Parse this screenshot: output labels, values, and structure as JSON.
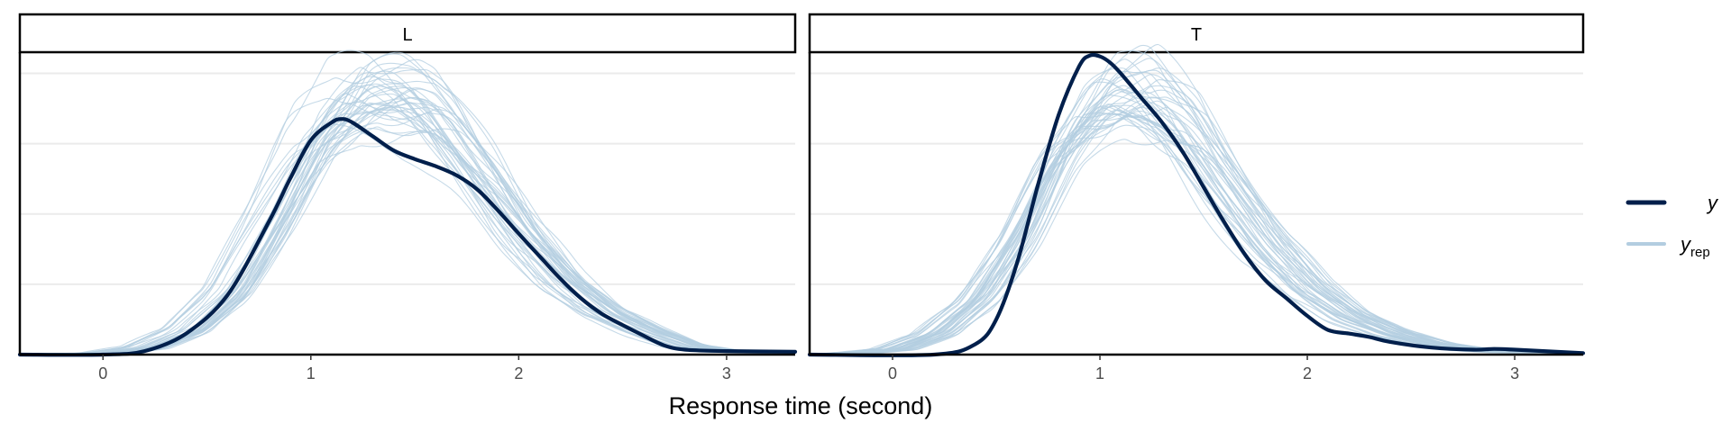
{
  "chart_data": {
    "type": "line",
    "xlabel": "Response time (second)",
    "ylabel": "",
    "xlim": [
      -0.4,
      3.33
    ],
    "x_ticks": [
      "0",
      "1",
      "2",
      "3"
    ],
    "y_ticks": [
      1,
      2,
      3,
      4
    ],
    "ylim": [
      0,
      4.3
    ],
    "grid": "horizontal",
    "legend_position": "right",
    "legend": [
      {
        "label": "y",
        "sub": "",
        "color": "#011f4b"
      },
      {
        "label": "y",
        "sub": "rep",
        "color": "#b3cde0"
      }
    ],
    "replicates_per_panel": 40,
    "panels": [
      {
        "strip": "L",
        "observed": {
          "x": [
            -0.4,
            0.0,
            0.2,
            0.4,
            0.6,
            0.8,
            0.9,
            1.0,
            1.1,
            1.15,
            1.2,
            1.3,
            1.4,
            1.5,
            1.6,
            1.7,
            1.8,
            1.9,
            2.0,
            2.1,
            2.2,
            2.3,
            2.4,
            2.5,
            2.6,
            2.7,
            2.8,
            3.0,
            3.33
          ],
          "y": [
            0.0,
            0.0,
            0.05,
            0.3,
            0.85,
            1.9,
            2.5,
            3.05,
            3.3,
            3.35,
            3.3,
            3.1,
            2.9,
            2.78,
            2.68,
            2.55,
            2.35,
            2.05,
            1.72,
            1.4,
            1.08,
            0.8,
            0.58,
            0.42,
            0.27,
            0.13,
            0.07,
            0.05,
            0.04
          ]
        },
        "replicate": {
          "x": [
            -0.4,
            0.0,
            0.2,
            0.4,
            0.6,
            0.8,
            1.0,
            1.2,
            1.4,
            1.5,
            1.6,
            1.8,
            2.0,
            2.2,
            2.4,
            2.6,
            2.8,
            3.0,
            3.33
          ],
          "y": [
            0.0,
            0.02,
            0.1,
            0.35,
            0.9,
            1.9,
            3.0,
            3.6,
            3.65,
            3.55,
            3.3,
            2.55,
            1.7,
            1.05,
            0.6,
            0.33,
            0.12,
            0.04,
            0.02
          ]
        }
      },
      {
        "strip": "T",
        "observed": {
          "x": [
            -0.4,
            0.2,
            0.4,
            0.5,
            0.6,
            0.7,
            0.8,
            0.9,
            0.95,
            1.0,
            1.05,
            1.1,
            1.2,
            1.3,
            1.4,
            1.5,
            1.6,
            1.7,
            1.8,
            1.9,
            2.0,
            2.1,
            2.2,
            2.3,
            2.4,
            2.6,
            2.8,
            2.9,
            3.0,
            3.33
          ],
          "y": [
            0.0,
            0.0,
            0.15,
            0.5,
            1.3,
            2.4,
            3.4,
            4.1,
            4.25,
            4.24,
            4.15,
            4.0,
            3.65,
            3.3,
            2.88,
            2.38,
            1.88,
            1.42,
            1.05,
            0.8,
            0.55,
            0.35,
            0.3,
            0.25,
            0.18,
            0.1,
            0.07,
            0.08,
            0.07,
            0.02
          ]
        },
        "replicate": {
          "x": [
            -0.4,
            -0.2,
            0.0,
            0.2,
            0.4,
            0.6,
            0.8,
            1.0,
            1.2,
            1.4,
            1.6,
            1.8,
            2.0,
            2.2,
            2.4,
            2.6,
            2.8,
            3.0,
            3.33
          ],
          "y": [
            0.0,
            0.02,
            0.08,
            0.3,
            0.8,
            1.7,
            2.9,
            3.65,
            3.7,
            3.2,
            2.35,
            1.55,
            0.95,
            0.55,
            0.3,
            0.15,
            0.07,
            0.03,
            0.01
          ]
        }
      }
    ]
  }
}
